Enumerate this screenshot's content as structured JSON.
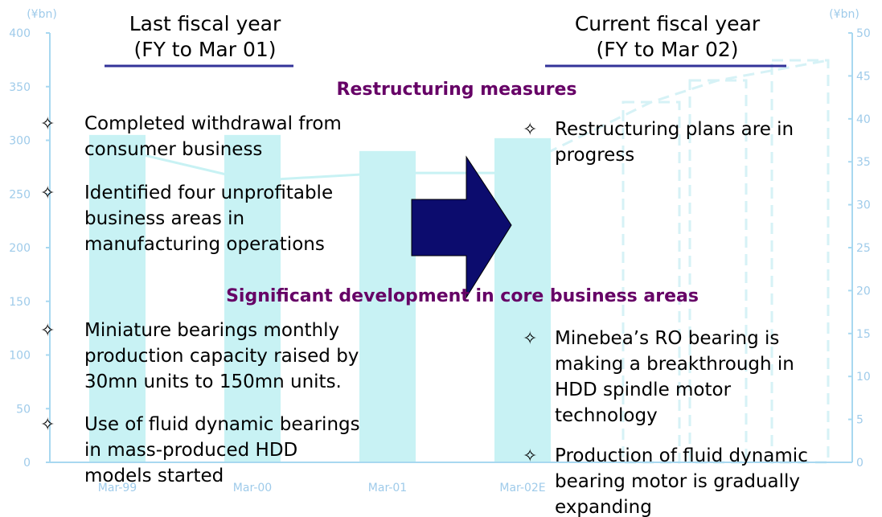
{
  "left_heading": [
    "Last fiscal year",
    "(FY to Mar 01)"
  ],
  "right_heading": [
    "Current fiscal year",
    "(FY to Mar 02)"
  ],
  "restructuring": {
    "title": "Restructuring measures",
    "left": [
      [
        "Completed withdrawal from",
        "consumer business"
      ],
      [
        "Identified four unprofitable",
        "business areas in",
        "manufacturing operations"
      ]
    ],
    "right": [
      [
        "Restructuring plans are in",
        "progress"
      ]
    ]
  },
  "development": {
    "title": "Significant development in core business areas",
    "left": [
      [
        "Miniature bearings monthly",
        "production capacity raised by",
        "30mn units to 150mn units."
      ],
      [
        "Use of fluid dynamic bearings",
        "in mass-produced HDD",
        "models started"
      ]
    ],
    "right": [
      [
        "Minebea’s RO bearing is",
        "making a breakthrough in",
        "HDD spindle motor",
        "technology"
      ],
      [
        "Production of fluid dynamic",
        "bearing motor is gradually",
        "expanding"
      ]
    ]
  },
  "chart": {
    "type": "bar",
    "unit_left": "(¥bn)",
    "unit_right": "(¥bn)",
    "categories": [
      "Mar-99",
      "Mar-00",
      "Mar-01",
      "Mar-02E"
    ],
    "series": [
      {
        "values": [
          305,
          305,
          290,
          302
        ],
        "color": "#c8f2f4"
      },
      {
        "values": [
          36.5,
          32.8,
          33.7,
          33.7
        ],
        "color": "#c8f2f4",
        "axis": "y2"
      }
    ],
    "ylim": [
      0,
      400
    ],
    "yticks": [
      0,
      50,
      100,
      150,
      200,
      250,
      300,
      350,
      400
    ],
    "y2lim": [
      0,
      50
    ],
    "y2ticks": [
      0,
      5,
      10,
      15,
      20,
      25,
      30,
      35,
      40,
      45,
      50
    ]
  }
}
